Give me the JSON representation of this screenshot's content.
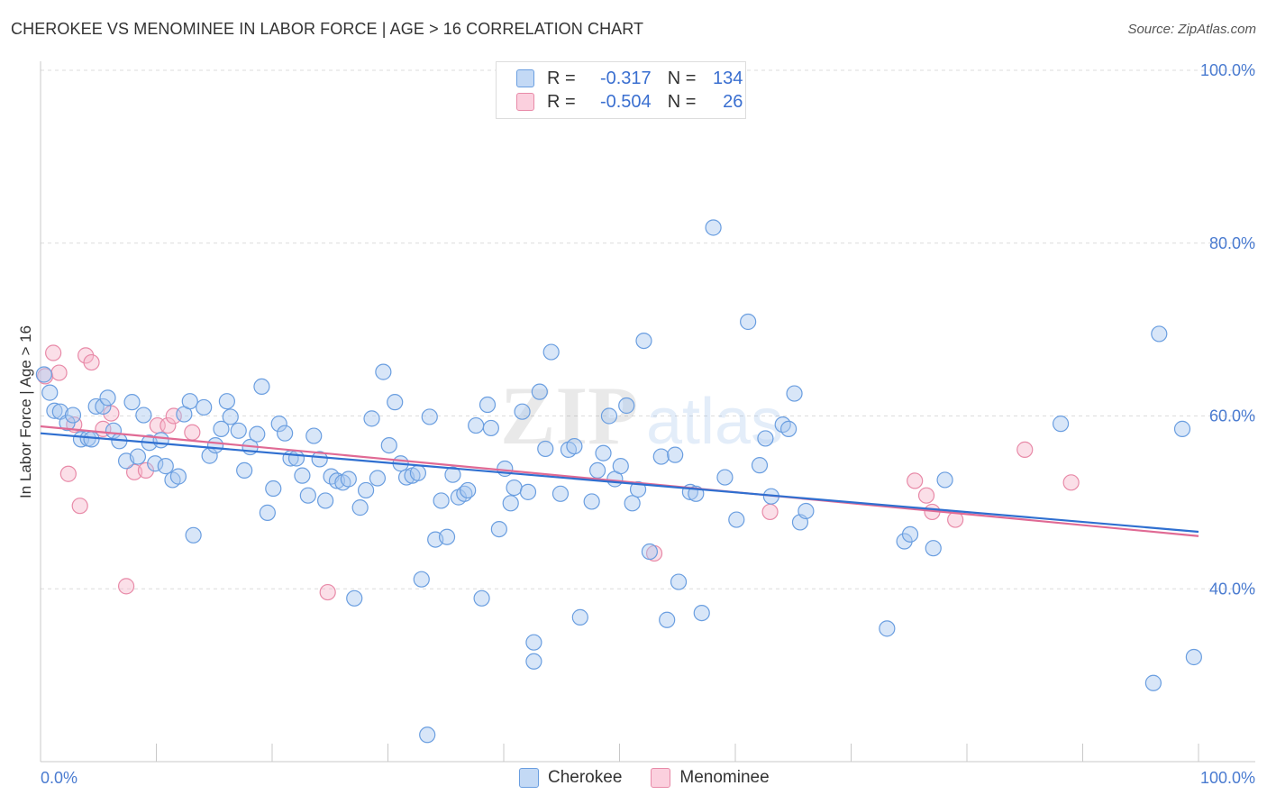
{
  "header": {
    "title": "CHEROKEE VS MENOMINEE IN LABOR FORCE | AGE > 16 CORRELATION CHART",
    "source": "Source: ZipAtlas.com"
  },
  "watermark": {
    "zip": "ZIP",
    "atlas": "atlas"
  },
  "legend": {
    "rows": [
      {
        "r_label": "R =",
        "r_value": "-0.317",
        "n_label": "N =",
        "n_value": "134"
      },
      {
        "r_label": "R =",
        "r_value": "-0.504",
        "n_label": "N =",
        "n_value": "26"
      }
    ]
  },
  "bottom_legend": {
    "cherokee": "Cherokee",
    "menominee": "Menominee"
  },
  "colors": {
    "cherokee_fill": "#a8c8f0",
    "cherokee_stroke": "#6a9ee0",
    "cherokee_line": "#2f6fd0",
    "menominee_fill": "#f6b8cc",
    "menominee_stroke": "#e88aa8",
    "menominee_line": "#e06a94",
    "tick_text": "#4a7bd0"
  },
  "chart_data": {
    "type": "scatter",
    "title": "CHEROKEE VS MENOMINEE IN LABOR FORCE | AGE > 16 CORRELATION CHART",
    "xlabel": "",
    "ylabel": "In Labor Force | Age > 16",
    "xlim": [
      0,
      100
    ],
    "ylim": [
      20,
      100
    ],
    "x_tick_labels": [
      "0.0%",
      "100.0%"
    ],
    "y_ticks": [
      40,
      60,
      80,
      100
    ],
    "y_tick_labels": [
      "40.0%",
      "60.0%",
      "80.0%",
      "100.0%"
    ],
    "grid": true,
    "legend_position": "top-center",
    "series": [
      {
        "name": "Cherokee",
        "r": -0.317,
        "n": 134,
        "trend": {
          "x": [
            0,
            100
          ],
          "y": [
            58.0,
            46.6
          ]
        },
        "points": [
          [
            0.3,
            64.8
          ],
          [
            0.8,
            62.7
          ],
          [
            1.2,
            60.6
          ],
          [
            1.7,
            60.5
          ],
          [
            2.3,
            59.2
          ],
          [
            2.8,
            60.1
          ],
          [
            3.5,
            57.3
          ],
          [
            4.1,
            57.4
          ],
          [
            4.4,
            57.3
          ],
          [
            4.8,
            61.1
          ],
          [
            5.4,
            61.1
          ],
          [
            5.8,
            62.1
          ],
          [
            6.3,
            58.3
          ],
          [
            6.8,
            57.1
          ],
          [
            7.4,
            54.8
          ],
          [
            7.9,
            61.6
          ],
          [
            8.4,
            55.3
          ],
          [
            8.9,
            60.1
          ],
          [
            9.4,
            56.9
          ],
          [
            9.9,
            54.5
          ],
          [
            10.4,
            57.2
          ],
          [
            10.8,
            54.2
          ],
          [
            11.4,
            52.6
          ],
          [
            11.9,
            53.0
          ],
          [
            12.4,
            60.2
          ],
          [
            12.9,
            61.7
          ],
          [
            13.2,
            46.2
          ],
          [
            14.1,
            61.0
          ],
          [
            14.6,
            55.4
          ],
          [
            15.1,
            56.6
          ],
          [
            15.6,
            58.5
          ],
          [
            16.1,
            61.7
          ],
          [
            16.4,
            59.9
          ],
          [
            17.1,
            58.3
          ],
          [
            17.6,
            53.7
          ],
          [
            18.1,
            56.4
          ],
          [
            18.7,
            57.9
          ],
          [
            19.1,
            63.4
          ],
          [
            19.6,
            48.8
          ],
          [
            20.1,
            51.6
          ],
          [
            20.6,
            59.1
          ],
          [
            21.1,
            58.0
          ],
          [
            21.6,
            55.1
          ],
          [
            22.1,
            55.1
          ],
          [
            22.6,
            53.1
          ],
          [
            23.1,
            50.8
          ],
          [
            23.6,
            57.7
          ],
          [
            24.1,
            55.0
          ],
          [
            24.6,
            50.2
          ],
          [
            25.1,
            53.0
          ],
          [
            25.6,
            52.5
          ],
          [
            26.1,
            52.3
          ],
          [
            26.6,
            52.7
          ],
          [
            27.1,
            38.9
          ],
          [
            27.6,
            49.4
          ],
          [
            28.1,
            51.4
          ],
          [
            28.6,
            59.7
          ],
          [
            29.1,
            52.8
          ],
          [
            29.6,
            65.1
          ],
          [
            30.1,
            56.6
          ],
          [
            30.6,
            61.6
          ],
          [
            31.1,
            54.5
          ],
          [
            31.6,
            52.9
          ],
          [
            32.1,
            53.1
          ],
          [
            32.6,
            53.4
          ],
          [
            32.9,
            41.1
          ],
          [
            33.6,
            59.9
          ],
          [
            34.1,
            45.7
          ],
          [
            34.6,
            50.2
          ],
          [
            35.1,
            46.0
          ],
          [
            35.6,
            53.2
          ],
          [
            36.1,
            50.6
          ],
          [
            36.6,
            51.0
          ],
          [
            36.9,
            51.4
          ],
          [
            37.6,
            58.9
          ],
          [
            38.1,
            38.9
          ],
          [
            38.6,
            61.3
          ],
          [
            38.9,
            58.6
          ],
          [
            39.6,
            46.9
          ],
          [
            40.1,
            53.9
          ],
          [
            40.6,
            49.9
          ],
          [
            40.9,
            51.7
          ],
          [
            41.6,
            60.5
          ],
          [
            42.1,
            51.2
          ],
          [
            42.6,
            31.6
          ],
          [
            43.1,
            62.8
          ],
          [
            43.6,
            56.2
          ],
          [
            44.1,
            67.4
          ],
          [
            44.9,
            51.0
          ],
          [
            45.6,
            56.1
          ],
          [
            46.1,
            56.5
          ],
          [
            46.6,
            36.7
          ],
          [
            47.6,
            50.1
          ],
          [
            48.1,
            53.7
          ],
          [
            48.6,
            55.7
          ],
          [
            49.1,
            60.0
          ],
          [
            49.6,
            52.7
          ],
          [
            50.1,
            54.2
          ],
          [
            50.6,
            61.2
          ],
          [
            51.1,
            49.9
          ],
          [
            51.6,
            51.5
          ],
          [
            52.1,
            68.7
          ],
          [
            52.6,
            44.3
          ],
          [
            53.6,
            55.3
          ],
          [
            54.1,
            36.4
          ],
          [
            54.8,
            55.5
          ],
          [
            55.1,
            40.8
          ],
          [
            56.1,
            51.2
          ],
          [
            56.6,
            51.0
          ],
          [
            57.1,
            37.2
          ],
          [
            58.1,
            81.8
          ],
          [
            59.1,
            52.9
          ],
          [
            60.1,
            48.0
          ],
          [
            61.1,
            70.9
          ],
          [
            62.1,
            54.3
          ],
          [
            62.6,
            57.4
          ],
          [
            63.1,
            50.7
          ],
          [
            64.1,
            59.0
          ],
          [
            64.6,
            58.5
          ],
          [
            65.1,
            62.6
          ],
          [
            65.6,
            47.7
          ],
          [
            66.1,
            49.0
          ],
          [
            73.1,
            35.4
          ],
          [
            74.6,
            45.5
          ],
          [
            75.1,
            46.3
          ],
          [
            77.1,
            44.7
          ],
          [
            78.1,
            52.6
          ],
          [
            88.1,
            59.1
          ],
          [
            96.6,
            69.5
          ],
          [
            98.6,
            58.5
          ],
          [
            33.4,
            23.1
          ],
          [
            96.1,
            29.1
          ],
          [
            99.6,
            32.1
          ],
          [
            42.6,
            33.8
          ]
        ]
      },
      {
        "name": "Menominee",
        "r": -0.504,
        "n": 26,
        "trend": {
          "x": [
            0,
            100
          ],
          "y": [
            58.8,
            46.1
          ]
        },
        "points": [
          [
            0.4,
            64.6
          ],
          [
            1.1,
            67.3
          ],
          [
            1.6,
            65.0
          ],
          [
            2.4,
            53.3
          ],
          [
            2.9,
            59.0
          ],
          [
            3.4,
            49.6
          ],
          [
            3.9,
            67.0
          ],
          [
            4.4,
            66.2
          ],
          [
            5.4,
            58.5
          ],
          [
            6.1,
            60.3
          ],
          [
            7.4,
            40.3
          ],
          [
            8.1,
            53.5
          ],
          [
            9.1,
            53.7
          ],
          [
            10.1,
            58.9
          ],
          [
            11.0,
            58.9
          ],
          [
            11.5,
            60.0
          ],
          [
            13.1,
            58.1
          ],
          [
            24.8,
            39.6
          ],
          [
            53.0,
            44.1
          ],
          [
            63.0,
            48.9
          ],
          [
            75.5,
            52.5
          ],
          [
            76.5,
            50.8
          ],
          [
            77.0,
            48.9
          ],
          [
            79.0,
            48.0
          ],
          [
            85.0,
            56.1
          ],
          [
            89.0,
            52.3
          ]
        ]
      }
    ]
  }
}
